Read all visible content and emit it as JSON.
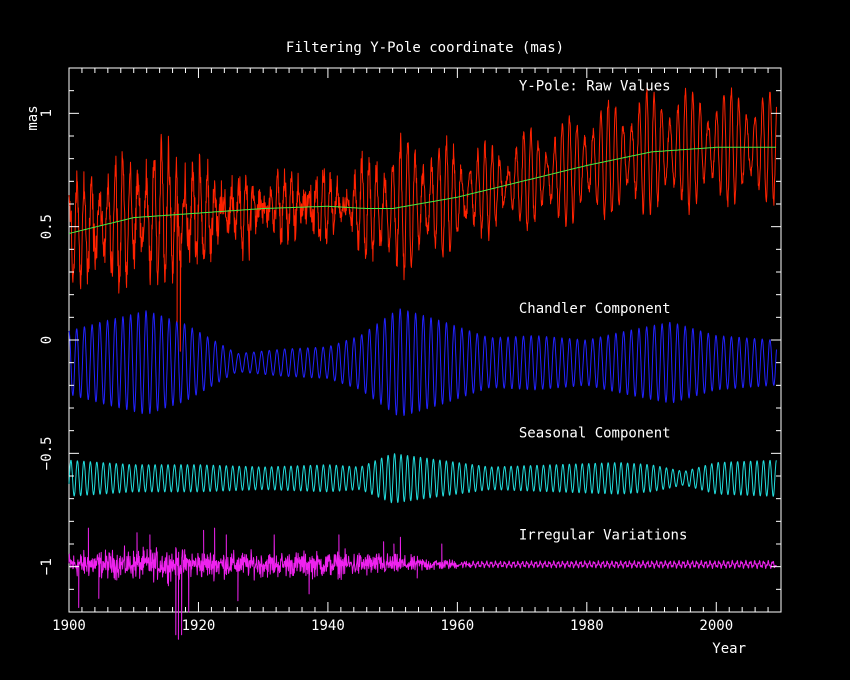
{
  "chart_data": {
    "type": "line",
    "title": "Filtering Y-Pole coordinate (mas)",
    "xlabel": "Year",
    "ylabel": "mas",
    "xlim": [
      1900,
      2010
    ],
    "ylim": [
      -1.2,
      1.2
    ],
    "xticks": [
      1900,
      1920,
      1940,
      1960,
      1980,
      2000
    ],
    "yticks": [
      -1,
      -0.5,
      0,
      0.5,
      1
    ],
    "ytick_labels": [
      "−1",
      "−0.5",
      "0",
      "0.5",
      "1"
    ],
    "grid": false,
    "background": "#000000",
    "axis_color": "#ffffff",
    "series": [
      {
        "name": "Y-Pole: Raw Values",
        "color": "#ff2200",
        "label_pos": [
          1969.5,
          1.1
        ],
        "trend_points": [
          [
            1900,
            0.47
          ],
          [
            1910,
            0.54
          ],
          [
            1920,
            0.56
          ],
          [
            1930,
            0.58
          ],
          [
            1940,
            0.59
          ],
          [
            1946,
            0.58
          ],
          [
            1950,
            0.58
          ],
          [
            1960,
            0.63
          ],
          [
            1970,
            0.7
          ],
          [
            1980,
            0.77
          ],
          [
            1990,
            0.83
          ],
          [
            2000,
            0.85
          ],
          [
            2009,
            0.85
          ]
        ],
        "amplitude_envelope": [
          [
            1900,
            0.14
          ],
          [
            1910,
            0.2
          ],
          [
            1916,
            0.22
          ],
          [
            1925,
            0.07
          ],
          [
            1935,
            0.06
          ],
          [
            1943,
            0.08
          ],
          [
            1950,
            0.22
          ],
          [
            1955,
            0.2
          ],
          [
            1965,
            0.12
          ],
          [
            1975,
            0.16
          ],
          [
            1990,
            0.2
          ],
          [
            2000,
            0.18
          ],
          [
            2009,
            0.18
          ]
        ],
        "noise_envelope": [
          [
            1900,
            0.06
          ],
          [
            1920,
            0.07
          ],
          [
            1940,
            0.05
          ],
          [
            1960,
            0.03
          ],
          [
            1980,
            0.02
          ],
          [
            2009,
            0.02
          ]
        ]
      },
      {
        "name": "Trend",
        "color": "#44ee44",
        "points": [
          [
            1900,
            0.47
          ],
          [
            1910,
            0.54
          ],
          [
            1920,
            0.56
          ],
          [
            1930,
            0.58
          ],
          [
            1940,
            0.59
          ],
          [
            1946,
            0.58
          ],
          [
            1950,
            0.58
          ],
          [
            1960,
            0.63
          ],
          [
            1970,
            0.7
          ],
          [
            1980,
            0.77
          ],
          [
            1990,
            0.83
          ],
          [
            2000,
            0.85
          ],
          [
            2009,
            0.85
          ]
        ]
      },
      {
        "name": "Chandler Component",
        "color": "#2222ff",
        "label_pos": [
          1969.5,
          0.12
        ],
        "center": -0.1,
        "period_years": 1.19,
        "amplitude_envelope": [
          [
            1900,
            0.14
          ],
          [
            1905,
            0.18
          ],
          [
            1912,
            0.23
          ],
          [
            1918,
            0.17
          ],
          [
            1926,
            0.04
          ],
          [
            1933,
            0.06
          ],
          [
            1940,
            0.07
          ],
          [
            1945,
            0.12
          ],
          [
            1951,
            0.24
          ],
          [
            1957,
            0.19
          ],
          [
            1965,
            0.11
          ],
          [
            1972,
            0.12
          ],
          [
            1980,
            0.1
          ],
          [
            1986,
            0.14
          ],
          [
            1993,
            0.18
          ],
          [
            2000,
            0.12
          ],
          [
            2009,
            0.1
          ]
        ]
      },
      {
        "name": "Seasonal Component",
        "color": "#22dddd",
        "label_pos": [
          1969.5,
          -0.43
        ],
        "center": -0.61,
        "period_years": 1.0,
        "amplitude_envelope": [
          [
            1900,
            0.08
          ],
          [
            1910,
            0.06
          ],
          [
            1920,
            0.06
          ],
          [
            1930,
            0.05
          ],
          [
            1940,
            0.06
          ],
          [
            1945,
            0.05
          ],
          [
            1950,
            0.11
          ],
          [
            1955,
            0.09
          ],
          [
            1965,
            0.05
          ],
          [
            1975,
            0.06
          ],
          [
            1985,
            0.07
          ],
          [
            1990,
            0.06
          ],
          [
            1995,
            0.03
          ],
          [
            2000,
            0.07
          ],
          [
            2009,
            0.08
          ]
        ]
      },
      {
        "name": "Irregular Variations",
        "color": "#ee22ee",
        "label_pos": [
          1969.5,
          -0.88
        ],
        "center": -0.99,
        "noise_envelope": [
          [
            1900,
            0.04
          ],
          [
            1915,
            0.05
          ],
          [
            1925,
            0.04
          ],
          [
            1945,
            0.04
          ],
          [
            1962,
            0.01
          ],
          [
            1970,
            0.01
          ],
          [
            2009,
            0.012
          ]
        ],
        "spikes": [
          [
            1901.5,
            -1.18
          ],
          [
            1903,
            -0.83
          ],
          [
            1904.6,
            -1.14
          ],
          [
            1910.5,
            -0.85
          ],
          [
            1912.5,
            -0.86
          ],
          [
            1916.5,
            -1.3
          ],
          [
            1916.9,
            -1.32
          ],
          [
            1917.4,
            -1.3
          ],
          [
            1918.5,
            -1.2
          ],
          [
            1920.8,
            -0.84
          ],
          [
            1922.5,
            -0.83
          ],
          [
            1924.3,
            -0.86
          ],
          [
            1926.1,
            -1.15
          ],
          [
            1931.7,
            -0.86
          ],
          [
            1937.1,
            -1.12
          ],
          [
            1941.7,
            -0.86
          ],
          [
            1948.6,
            -0.89
          ],
          [
            1950.2,
            -0.9
          ],
          [
            1951.2,
            -0.87
          ],
          [
            1953.8,
            -1.05
          ],
          [
            1957.6,
            -0.9
          ]
        ]
      }
    ]
  }
}
